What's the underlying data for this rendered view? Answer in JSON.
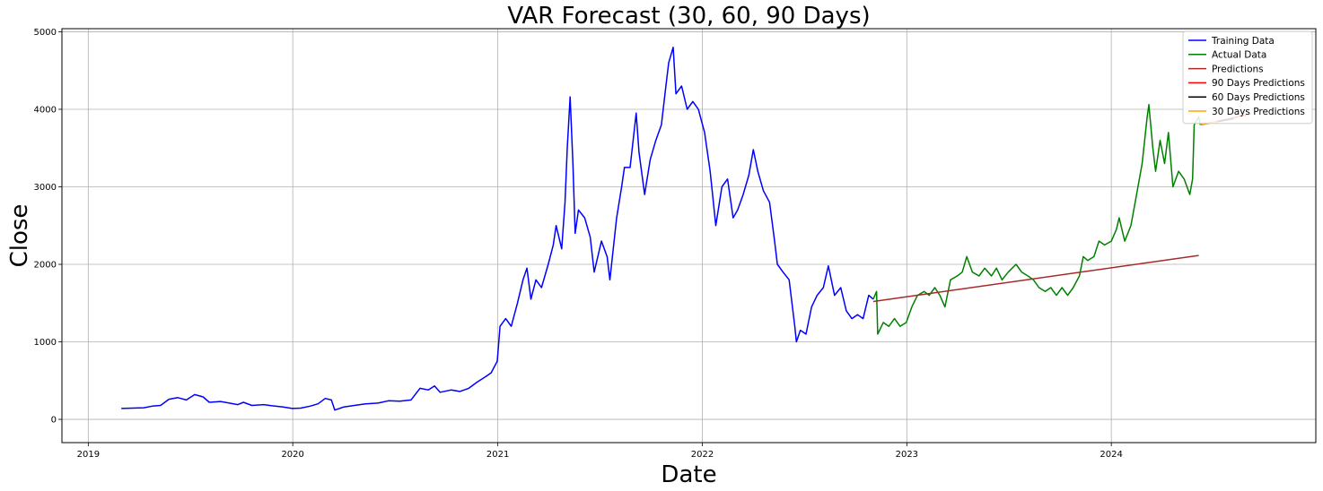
{
  "chart_data": {
    "type": "line",
    "title": "VAR Forecast (30, 60, 90 Days)",
    "xlabel": "Date",
    "ylabel": "Close",
    "x_type": "date",
    "xlim": [
      "2018-11-15",
      "2024-12-31"
    ],
    "ylim": [
      -300,
      5040
    ],
    "x_ticks": [
      {
        "value": "2019-01-01",
        "label": "2019"
      },
      {
        "value": "2020-01-01",
        "label": "2020"
      },
      {
        "value": "2021-01-01",
        "label": "2021"
      },
      {
        "value": "2022-01-01",
        "label": "2022"
      },
      {
        "value": "2023-01-01",
        "label": "2023"
      },
      {
        "value": "2024-01-01",
        "label": "2024"
      }
    ],
    "y_ticks": [
      0,
      1000,
      2000,
      3000,
      4000,
      5000
    ],
    "y_tick_labels": [
      "0",
      "1000",
      "2000",
      "3000",
      "4000",
      "5000"
    ],
    "grid": true,
    "legend_position": "top-right",
    "series": [
      {
        "name": "Training Data",
        "color": "#0000ff",
        "points": [
          [
            "2019-03-01",
            140
          ],
          [
            "2019-03-20",
            145
          ],
          [
            "2019-04-10",
            150
          ],
          [
            "2019-04-25",
            170
          ],
          [
            "2019-05-10",
            180
          ],
          [
            "2019-05-25",
            260
          ],
          [
            "2019-06-10",
            280
          ],
          [
            "2019-06-25",
            250
          ],
          [
            "2019-07-10",
            320
          ],
          [
            "2019-07-25",
            290
          ],
          [
            "2019-08-05",
            220
          ],
          [
            "2019-08-25",
            230
          ],
          [
            "2019-09-10",
            210
          ],
          [
            "2019-09-25",
            190
          ],
          [
            "2019-10-05",
            220
          ],
          [
            "2019-10-20",
            180
          ],
          [
            "2019-11-10",
            190
          ],
          [
            "2019-11-25",
            175
          ],
          [
            "2019-12-15",
            160
          ],
          [
            "2019-12-31",
            140
          ],
          [
            "2020-01-15",
            145
          ],
          [
            "2020-02-01",
            170
          ],
          [
            "2020-02-15",
            200
          ],
          [
            "2020-02-28",
            270
          ],
          [
            "2020-03-10",
            250
          ],
          [
            "2020-03-16",
            120
          ],
          [
            "2020-04-01",
            160
          ],
          [
            "2020-04-20",
            180
          ],
          [
            "2020-05-10",
            200
          ],
          [
            "2020-06-01",
            210
          ],
          [
            "2020-06-20",
            240
          ],
          [
            "2020-07-10",
            235
          ],
          [
            "2020-07-30",
            250
          ],
          [
            "2020-08-15",
            400
          ],
          [
            "2020-08-30",
            380
          ],
          [
            "2020-09-10",
            430
          ],
          [
            "2020-09-20",
            350
          ],
          [
            "2020-10-10",
            380
          ],
          [
            "2020-10-25",
            360
          ],
          [
            "2020-11-10",
            400
          ],
          [
            "2020-11-25",
            480
          ],
          [
            "2020-12-10",
            550
          ],
          [
            "2020-12-20",
            600
          ],
          [
            "2020-12-31",
            750
          ],
          [
            "2021-01-05",
            1200
          ],
          [
            "2021-01-15",
            1300
          ],
          [
            "2021-01-25",
            1200
          ],
          [
            "2021-02-05",
            1500
          ],
          [
            "2021-02-15",
            1800
          ],
          [
            "2021-02-22",
            1950
          ],
          [
            "2021-03-01",
            1550
          ],
          [
            "2021-03-10",
            1800
          ],
          [
            "2021-03-20",
            1700
          ],
          [
            "2021-04-01",
            2000
          ],
          [
            "2021-04-10",
            2250
          ],
          [
            "2021-04-15",
            2500
          ],
          [
            "2021-04-25",
            2200
          ],
          [
            "2021-05-01",
            2800
          ],
          [
            "2021-05-05",
            3500
          ],
          [
            "2021-05-10",
            4160
          ],
          [
            "2021-05-15",
            3300
          ],
          [
            "2021-05-19",
            2400
          ],
          [
            "2021-05-25",
            2700
          ],
          [
            "2021-06-05",
            2600
          ],
          [
            "2021-06-15",
            2350
          ],
          [
            "2021-06-22",
            1900
          ],
          [
            "2021-07-05",
            2300
          ],
          [
            "2021-07-15",
            2100
          ],
          [
            "2021-07-20",
            1800
          ],
          [
            "2021-08-01",
            2600
          ],
          [
            "2021-08-10",
            3000
          ],
          [
            "2021-08-15",
            3250
          ],
          [
            "2021-08-25",
            3250
          ],
          [
            "2021-09-05",
            3950
          ],
          [
            "2021-09-10",
            3450
          ],
          [
            "2021-09-20",
            2900
          ],
          [
            "2021-09-30",
            3350
          ],
          [
            "2021-10-10",
            3600
          ],
          [
            "2021-10-20",
            3800
          ],
          [
            "2021-10-28",
            4300
          ],
          [
            "2021-11-02",
            4600
          ],
          [
            "2021-11-10",
            4800
          ],
          [
            "2021-11-15",
            4200
          ],
          [
            "2021-11-25",
            4300
          ],
          [
            "2021-12-05",
            4000
          ],
          [
            "2021-12-15",
            4100
          ],
          [
            "2021-12-25",
            4000
          ],
          [
            "2022-01-05",
            3700
          ],
          [
            "2022-01-15",
            3200
          ],
          [
            "2022-01-25",
            2500
          ],
          [
            "2022-02-05",
            3000
          ],
          [
            "2022-02-15",
            3100
          ],
          [
            "2022-02-25",
            2600
          ],
          [
            "2022-03-05",
            2700
          ],
          [
            "2022-03-15",
            2900
          ],
          [
            "2022-03-25",
            3150
          ],
          [
            "2022-04-02",
            3480
          ],
          [
            "2022-04-10",
            3200
          ],
          [
            "2022-04-20",
            2950
          ],
          [
            "2022-05-01",
            2800
          ],
          [
            "2022-05-10",
            2300
          ],
          [
            "2022-05-15",
            2000
          ],
          [
            "2022-05-25",
            1900
          ],
          [
            "2022-06-05",
            1800
          ],
          [
            "2022-06-15",
            1200
          ],
          [
            "2022-06-18",
            1000
          ],
          [
            "2022-06-25",
            1150
          ],
          [
            "2022-07-05",
            1100
          ],
          [
            "2022-07-15",
            1450
          ],
          [
            "2022-07-25",
            1600
          ],
          [
            "2022-08-05",
            1700
          ],
          [
            "2022-08-14",
            1980
          ],
          [
            "2022-08-25",
            1600
          ],
          [
            "2022-09-05",
            1700
          ],
          [
            "2022-09-15",
            1400
          ],
          [
            "2022-09-25",
            1300
          ],
          [
            "2022-10-05",
            1350
          ],
          [
            "2022-10-15",
            1300
          ],
          [
            "2022-10-25",
            1600
          ],
          [
            "2022-11-02",
            1550
          ]
        ]
      },
      {
        "name": "Actual Data",
        "color": "#008000",
        "points": [
          [
            "2022-11-02",
            1550
          ],
          [
            "2022-11-08",
            1650
          ],
          [
            "2022-11-10",
            1100
          ],
          [
            "2022-11-20",
            1250
          ],
          [
            "2022-11-30",
            1200
          ],
          [
            "2022-12-10",
            1300
          ],
          [
            "2022-12-20",
            1200
          ],
          [
            "2022-12-31",
            1250
          ],
          [
            "2023-01-10",
            1450
          ],
          [
            "2023-01-20",
            1600
          ],
          [
            "2023-02-01",
            1650
          ],
          [
            "2023-02-10",
            1600
          ],
          [
            "2023-02-20",
            1700
          ],
          [
            "2023-03-01",
            1600
          ],
          [
            "2023-03-10",
            1450
          ],
          [
            "2023-03-20",
            1800
          ],
          [
            "2023-04-01",
            1850
          ],
          [
            "2023-04-10",
            1900
          ],
          [
            "2023-04-18",
            2100
          ],
          [
            "2023-04-28",
            1900
          ],
          [
            "2023-05-10",
            1850
          ],
          [
            "2023-05-20",
            1950
          ],
          [
            "2023-06-01",
            1850
          ],
          [
            "2023-06-10",
            1950
          ],
          [
            "2023-06-20",
            1800
          ],
          [
            "2023-07-01",
            1900
          ],
          [
            "2023-07-15",
            2000
          ],
          [
            "2023-07-25",
            1900
          ],
          [
            "2023-08-05",
            1850
          ],
          [
            "2023-08-15",
            1800
          ],
          [
            "2023-08-25",
            1700
          ],
          [
            "2023-09-05",
            1650
          ],
          [
            "2023-09-15",
            1700
          ],
          [
            "2023-09-25",
            1600
          ],
          [
            "2023-10-05",
            1700
          ],
          [
            "2023-10-15",
            1600
          ],
          [
            "2023-10-25",
            1700
          ],
          [
            "2023-11-05",
            1850
          ],
          [
            "2023-11-12",
            2100
          ],
          [
            "2023-11-20",
            2050
          ],
          [
            "2023-12-01",
            2100
          ],
          [
            "2023-12-10",
            2300
          ],
          [
            "2023-12-20",
            2250
          ],
          [
            "2024-01-01",
            2300
          ],
          [
            "2024-01-10",
            2450
          ],
          [
            "2024-01-15",
            2600
          ],
          [
            "2024-01-25",
            2300
          ],
          [
            "2024-02-05",
            2500
          ],
          [
            "2024-02-15",
            2900
          ],
          [
            "2024-02-25",
            3300
          ],
          [
            "2024-03-05",
            3900
          ],
          [
            "2024-03-08",
            4060
          ],
          [
            "2024-03-15",
            3500
          ],
          [
            "2024-03-20",
            3200
          ],
          [
            "2024-03-28",
            3600
          ],
          [
            "2024-04-05",
            3300
          ],
          [
            "2024-04-12",
            3700
          ],
          [
            "2024-04-20",
            3000
          ],
          [
            "2024-04-30",
            3200
          ],
          [
            "2024-05-10",
            3100
          ],
          [
            "2024-05-20",
            2900
          ],
          [
            "2024-05-25",
            3100
          ],
          [
            "2024-05-28",
            3800
          ],
          [
            "2024-06-05",
            3900
          ],
          [
            "2024-06-08",
            3800
          ]
        ]
      },
      {
        "name": "Predictions",
        "color": "#a52a2a",
        "points": [
          [
            "2022-11-02",
            1520
          ],
          [
            "2024-06-05",
            2115
          ]
        ]
      },
      {
        "name": "90 Days Predictions",
        "color": "#ff0000",
        "points": [
          [
            "2024-06-08",
            3800
          ],
          [
            "2024-09-06",
            3940
          ]
        ]
      },
      {
        "name": "60 Days Predictions",
        "color": "#000000",
        "points": [
          [
            "2024-06-08",
            3800
          ],
          [
            "2024-08-07",
            3880
          ]
        ]
      },
      {
        "name": "30 Days Predictions",
        "color": "#ffa500",
        "points": [
          [
            "2024-06-08",
            3800
          ],
          [
            "2024-07-08",
            3840
          ]
        ]
      }
    ]
  }
}
